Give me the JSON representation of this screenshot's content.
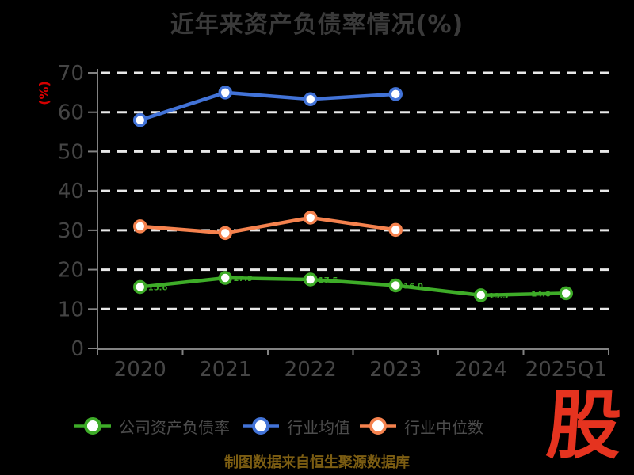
{
  "title": "近年来资产负债率情况(%)",
  "chart_data": {
    "type": "line",
    "title": "近年来资产负债率情况(%)",
    "categories": [
      "2020",
      "2021",
      "2022",
      "2023",
      "2024",
      "2025Q1"
    ],
    "series": [
      {
        "name": "公司资产负债率",
        "color": "#3EAC28",
        "values": [
          15.6,
          17.9,
          17.5,
          16.0,
          13.5,
          14.0
        ],
        "show_point_labels": true
      },
      {
        "name": "行业均值",
        "color": "#4273D8",
        "values": [
          58.0,
          65.0,
          63.3,
          64.6,
          null,
          null
        ],
        "show_point_labels": false
      },
      {
        "name": "行业中位数",
        "color": "#F5824E",
        "values": [
          31.0,
          29.3,
          33.2,
          30.1,
          null,
          null
        ],
        "show_point_labels": false
      }
    ],
    "xlabel": "",
    "ylabel": "(%)",
    "ylim": [
      0,
      70
    ],
    "yticks": [
      0,
      10,
      20,
      30,
      40,
      50,
      60,
      70
    ],
    "grid": "horizontal-dashed",
    "legend_position": "bottom",
    "style": {
      "background": "#000000",
      "title_color": "#3a3a3a",
      "tick_label_color": "#454545",
      "axis_color": "#828282",
      "grid_color": "#e8e8e8",
      "legend_text_color": "#4c4c4c",
      "ylabel_color": "#d40000"
    }
  },
  "footer": {
    "source_text": "制图数据来自恒生聚源数据库",
    "color": "#7c5d12"
  },
  "logo": {
    "text": "股",
    "color": "#e5331f"
  }
}
